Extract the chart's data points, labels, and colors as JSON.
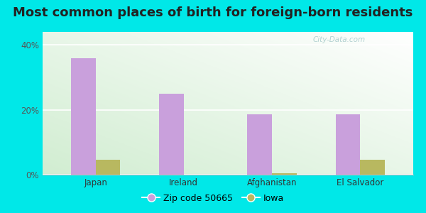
{
  "title": "Most common places of birth for foreign-born residents",
  "categories": [
    "Japan",
    "Ireland",
    "Afghanistan",
    "El Salvador"
  ],
  "zip_values": [
    36.0,
    25.0,
    18.5,
    18.5
  ],
  "iowa_values": [
    4.5,
    0.0,
    0.4,
    4.5
  ],
  "zip_color": "#c9a0dc",
  "iowa_color": "#b8b860",
  "ylim": [
    0,
    44
  ],
  "yticks": [
    0,
    20,
    40
  ],
  "yticklabels": [
    "0%",
    "20%",
    "40%"
  ],
  "legend_zip_label": "Zip code 50665",
  "legend_iowa_label": "Iowa",
  "outer_bg": "#00e8e8",
  "bar_width": 0.28,
  "title_fontsize": 13,
  "axis_bg": "#f0faf0",
  "watermark": "City-Data.com"
}
